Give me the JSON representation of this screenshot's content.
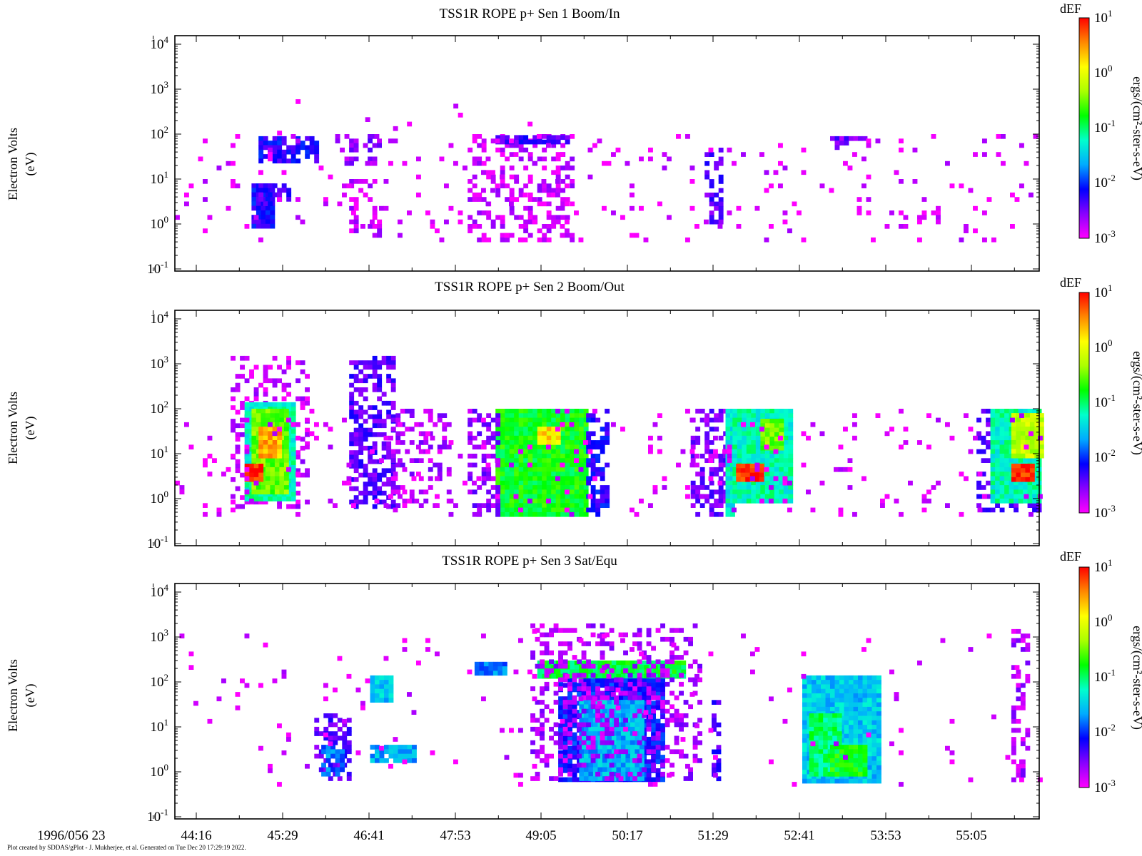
{
  "figure": {
    "footer": "Plot created by SDDAS/gPlot - J. Mukherjee, et al.  Generated on Tue Dec 20 17:29:19 2022.",
    "date_label": "1996/056 23",
    "x_ticks": [
      "44:16",
      "45:29",
      "46:41",
      "47:53",
      "49:05",
      "50:17",
      "51:29",
      "52:41",
      "53:53",
      "55:05"
    ],
    "y_ticks": [
      {
        "base": "10",
        "exp": "4"
      },
      {
        "base": "10",
        "exp": "3"
      },
      {
        "base": "10",
        "exp": "2"
      },
      {
        "base": "10",
        "exp": "1"
      },
      {
        "base": "10",
        "exp": "0"
      },
      {
        "base": "10",
        "exp": "-1"
      }
    ],
    "ylabel_line1": "Electron Volts",
    "ylabel_line2": "(eV)",
    "colorbar": {
      "title": "dEF",
      "label": "ergs/(cm²-ster-s-eV)",
      "ticks": [
        {
          "base": "10",
          "exp": "1"
        },
        {
          "base": "10",
          "exp": "0"
        },
        {
          "base": "10",
          "exp": "-1"
        },
        {
          "base": "10",
          "exp": "-2"
        },
        {
          "base": "10",
          "exp": "-3"
        }
      ],
      "colors": [
        "#ff00ff",
        "#8800ff",
        "#0000ff",
        "#00aaff",
        "#00ffcc",
        "#00ff00",
        "#aaff00",
        "#ffff00",
        "#ff8800",
        "#ff0000"
      ]
    }
  },
  "chart_data": [
    {
      "type": "heatmap",
      "title": "TSS1R ROPE p+ Sen 1 Boom/In",
      "xlabel": "1996/056 23",
      "ylabel": "Electron Volts (eV)",
      "y_scale": "log",
      "ylim": [
        0.1,
        10000
      ],
      "x_range_min": [
        43.8,
        56.2
      ],
      "color_scale": "log",
      "clim": [
        0.001,
        10
      ],
      "colorbar_label": "dEF ergs/(cm2-ster-s-eV)",
      "features": [
        {
          "t0": 44.9,
          "t1": 45.2,
          "e0": 0.8,
          "e1": 8,
          "level": -2.2,
          "density": 0.9
        },
        {
          "t0": 45.0,
          "t1": 45.4,
          "e0": 3,
          "e1": 8,
          "level": -2.3,
          "density": 0.6
        },
        {
          "t0": 45.0,
          "t1": 45.8,
          "e0": 25,
          "e1": 90,
          "level": -2.2,
          "density": 0.7
        },
        {
          "t0": 46.1,
          "t1": 46.7,
          "e0": 20,
          "e1": 100,
          "level": -2.6,
          "density": 0.45
        },
        {
          "t0": 46.3,
          "t1": 46.7,
          "e0": 0.6,
          "e1": 10,
          "level": -2.8,
          "density": 0.3
        },
        {
          "t0": 48.0,
          "t1": 49.5,
          "e0": 0.5,
          "e1": 100,
          "level": -2.8,
          "density": 0.35
        },
        {
          "t0": 48.4,
          "t1": 49.4,
          "e0": 60,
          "e1": 95,
          "level": -2.3,
          "density": 0.8
        },
        {
          "t0": 51.4,
          "t1": 51.6,
          "e0": 1,
          "e1": 50,
          "level": -2.4,
          "density": 0.6
        },
        {
          "t0": 53.2,
          "t1": 53.7,
          "e0": 50,
          "e1": 90,
          "level": -2.5,
          "density": 0.5
        },
        {
          "t0": 43.8,
          "t1": 56.2,
          "e0": 0.5,
          "e1": 100,
          "level": -2.9,
          "density": 0.05
        },
        {
          "t0": 45.0,
          "t1": 49.0,
          "e0": 100,
          "e1": 1500,
          "level": -2.9,
          "density": 0.015
        }
      ]
    },
    {
      "type": "heatmap",
      "title": "TSS1R ROPE p+ Sen 2 Boom/Out",
      "xlabel": "1996/056 23",
      "ylabel": "Electron Volts (eV)",
      "y_scale": "log",
      "ylim": [
        0.1,
        10000
      ],
      "x_range_min": [
        43.8,
        56.2
      ],
      "color_scale": "log",
      "clim": [
        0.001,
        10
      ],
      "colorbar_label": "dEF ergs/(cm2-ster-s-eV)",
      "features": [
        {
          "t0": 44.6,
          "t1": 45.7,
          "e0": 0.6,
          "e1": 1500,
          "level": -2.8,
          "density": 0.3
        },
        {
          "t0": 44.8,
          "t1": 45.5,
          "e0": 1,
          "e1": 140,
          "level": -1.2,
          "density": 1.0
        },
        {
          "t0": 44.9,
          "t1": 45.4,
          "e0": 1.5,
          "e1": 100,
          "level": -0.5,
          "density": 1.0
        },
        {
          "t0": 45.0,
          "t1": 45.3,
          "e0": 10,
          "e1": 40,
          "level": 0.4,
          "density": 1.0
        },
        {
          "t0": 44.8,
          "t1": 45.0,
          "e0": 2.5,
          "e1": 6,
          "level": 0.9,
          "density": 1.0
        },
        {
          "t0": 46.3,
          "t1": 46.9,
          "e0": 0.7,
          "e1": 1500,
          "level": -2.4,
          "density": 0.55
        },
        {
          "t0": 46.9,
          "t1": 47.7,
          "e0": 0.7,
          "e1": 100,
          "level": -2.7,
          "density": 0.3
        },
        {
          "t0": 48.4,
          "t1": 49.7,
          "e0": 0.45,
          "e1": 100,
          "level": -0.8,
          "density": 1.0
        },
        {
          "t0": 48.0,
          "t1": 48.4,
          "e0": 0.45,
          "e1": 100,
          "level": -2.6,
          "density": 0.5
        },
        {
          "t0": 49.7,
          "t1": 50.0,
          "e0": 0.45,
          "e1": 100,
          "level": -2.2,
          "density": 0.6
        },
        {
          "t0": 49.0,
          "t1": 49.3,
          "e0": 20,
          "e1": 40,
          "level": 0.2,
          "density": 1.0
        },
        {
          "t0": 51.2,
          "t1": 51.7,
          "e0": 0.5,
          "e1": 100,
          "level": -2.5,
          "density": 0.5
        },
        {
          "t0": 51.7,
          "t1": 51.8,
          "e0": 0.45,
          "e1": 100,
          "level": -1.3,
          "density": 1.0
        },
        {
          "t0": 51.8,
          "t1": 52.6,
          "e0": 1,
          "e1": 100,
          "level": -1.2,
          "density": 1.0
        },
        {
          "t0": 51.85,
          "t1": 52.2,
          "e0": 2.5,
          "e1": 6,
          "level": 0.9,
          "density": 1.0
        },
        {
          "t0": 52.2,
          "t1": 52.5,
          "e0": 15,
          "e1": 60,
          "level": -0.5,
          "density": 1.0
        },
        {
          "t0": 55.3,
          "t1": 56.2,
          "e0": 0.6,
          "e1": 100,
          "level": -2.4,
          "density": 0.5
        },
        {
          "t0": 55.5,
          "t1": 56.2,
          "e0": 1,
          "e1": 100,
          "level": -1.2,
          "density": 1.0
        },
        {
          "t0": 55.8,
          "t1": 56.1,
          "e0": 2.5,
          "e1": 6,
          "level": 0.9,
          "density": 1.0
        },
        {
          "t0": 55.8,
          "t1": 56.2,
          "e0": 10,
          "e1": 80,
          "level": -0.2,
          "density": 1.0
        },
        {
          "t0": 43.8,
          "t1": 56.2,
          "e0": 0.5,
          "e1": 100,
          "level": -2.9,
          "density": 0.05
        }
      ]
    },
    {
      "type": "heatmap",
      "title": "TSS1R ROPE p+ Sen 3 Sat/Equ",
      "xlabel": "1996/056 23",
      "ylabel": "Electron Volts (eV)",
      "y_scale": "log",
      "ylim": [
        0.1,
        10000
      ],
      "x_range_min": [
        43.8,
        56.2
      ],
      "color_scale": "log",
      "clim": [
        0.001,
        10
      ],
      "colorbar_label": "dEF ergs/(cm2-ster-s-eV)",
      "features": [
        {
          "t0": 45.8,
          "t1": 46.3,
          "e0": 0.7,
          "e1": 20,
          "level": -2.4,
          "density": 0.5
        },
        {
          "t0": 45.9,
          "t1": 46.2,
          "e0": 0.8,
          "e1": 4,
          "level": -1.8,
          "density": 0.8
        },
        {
          "t0": 46.6,
          "t1": 46.9,
          "e0": 40,
          "e1": 140,
          "level": -1.5,
          "density": 1.0
        },
        {
          "t0": 46.6,
          "t1": 47.2,
          "e0": 2,
          "e1": 4,
          "level": -1.6,
          "density": 0.9
        },
        {
          "t0": 48.1,
          "t1": 48.5,
          "e0": 150,
          "e1": 280,
          "level": -1.8,
          "density": 1.0
        },
        {
          "t0": 49.0,
          "t1": 51.1,
          "e0": 150,
          "e1": 300,
          "level": -0.9,
          "density": 1.0
        },
        {
          "t0": 49.3,
          "t1": 50.8,
          "e0": 0.7,
          "e1": 120,
          "level": -2.1,
          "density": 0.9
        },
        {
          "t0": 49.6,
          "t1": 50.5,
          "e0": 0.7,
          "e1": 40,
          "level": -1.6,
          "density": 1.0
        },
        {
          "t0": 48.9,
          "t1": 51.3,
          "e0": 0.7,
          "e1": 2000,
          "level": -2.7,
          "density": 0.3
        },
        {
          "t0": 51.5,
          "t1": 51.6,
          "e0": 0.7,
          "e1": 50,
          "level": -2.3,
          "density": 0.5
        },
        {
          "t0": 52.8,
          "t1": 53.9,
          "e0": 0.7,
          "e1": 140,
          "level": -1.5,
          "density": 1.0
        },
        {
          "t0": 52.9,
          "t1": 53.3,
          "e0": 1,
          "e1": 20,
          "level": -1.0,
          "density": 1.0
        },
        {
          "t0": 53.2,
          "t1": 53.7,
          "e0": 1,
          "e1": 4,
          "level": -0.8,
          "density": 1.0
        },
        {
          "t0": 55.8,
          "t1": 56.0,
          "e0": 0.7,
          "e1": 1500,
          "level": -2.7,
          "density": 0.45
        },
        {
          "t0": 43.8,
          "t1": 56.2,
          "e0": 0.5,
          "e1": 1500,
          "level": -2.9,
          "density": 0.02
        }
      ]
    }
  ]
}
